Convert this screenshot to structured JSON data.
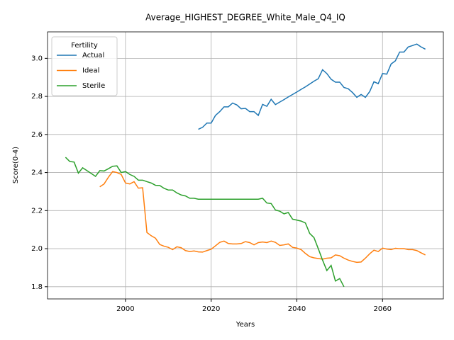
{
  "chart_data": {
    "type": "line",
    "title": "Average_HIGHEST_DEGREE_White_Male_Q4_IQ",
    "x_label": "Years",
    "y_label": "Score(0-4)",
    "x": [
      1986,
      1987,
      1988,
      1989,
      1990,
      1991,
      1992,
      1993,
      1994,
      1995,
      1996,
      1997,
      1998,
      1999,
      2000,
      2001,
      2002,
      2003,
      2004,
      2005,
      2006,
      2007,
      2008,
      2009,
      2010,
      2011,
      2012,
      2013,
      2014,
      2015,
      2016,
      2017,
      2018,
      2019,
      2020,
      2021,
      2022,
      2023,
      2024,
      2025,
      2026,
      2027,
      2028,
      2029,
      2030,
      2031,
      2032,
      2033,
      2034,
      2035,
      2036,
      2037,
      2038,
      2039,
      2040,
      2041,
      2042,
      2043,
      2044,
      2045,
      2046,
      2047,
      2048,
      2049,
      2050,
      2051,
      2052,
      2053,
      2054,
      2055,
      2056,
      2057,
      2058,
      2059,
      2060,
      2061,
      2062,
      2063,
      2064,
      2065,
      2066,
      2067,
      2068,
      2069,
      2070
    ],
    "series": [
      {
        "name": "Actual",
        "color": "#1f77b4",
        "values": [
          null,
          null,
          null,
          null,
          null,
          null,
          null,
          null,
          null,
          null,
          null,
          null,
          null,
          null,
          null,
          null,
          null,
          null,
          null,
          null,
          null,
          null,
          null,
          null,
          null,
          null,
          null,
          null,
          null,
          null,
          null,
          2.627,
          2.638,
          2.66,
          2.66,
          2.7,
          2.72,
          2.745,
          2.745,
          2.765,
          2.755,
          2.735,
          2.737,
          2.72,
          2.72,
          2.7,
          2.758,
          2.748,
          2.785,
          2.757,
          2.77,
          2.783,
          2.797,
          2.81,
          2.823,
          2.837,
          2.85,
          2.865,
          2.88,
          2.893,
          2.94,
          2.92,
          2.89,
          2.875,
          2.875,
          2.847,
          2.84,
          2.82,
          2.795,
          2.81,
          2.795,
          2.825,
          2.877,
          2.867,
          2.92,
          2.917,
          2.97,
          2.987,
          3.033,
          3.033,
          3.06,
          3.067,
          3.075,
          3.06,
          3.048
        ]
      },
      {
        "name": "Ideal",
        "color": "#ff7f0e",
        "values": [
          null,
          null,
          null,
          null,
          null,
          null,
          null,
          null,
          2.325,
          2.34,
          2.375,
          2.405,
          2.4,
          2.39,
          2.345,
          2.34,
          2.352,
          2.318,
          2.32,
          2.085,
          2.068,
          2.055,
          2.022,
          2.013,
          2.007,
          1.995,
          2.01,
          2.005,
          1.99,
          1.985,
          1.988,
          1.983,
          1.982,
          1.99,
          1.997,
          2.015,
          2.033,
          2.04,
          2.027,
          2.025,
          2.025,
          2.027,
          2.037,
          2.032,
          2.02,
          2.032,
          2.035,
          2.032,
          2.04,
          2.033,
          2.017,
          2.02,
          2.025,
          2.007,
          2.003,
          1.995,
          1.975,
          1.958,
          1.952,
          1.948,
          1.945,
          1.95,
          1.952,
          1.967,
          1.963,
          1.95,
          1.94,
          1.933,
          1.928,
          1.93,
          1.95,
          1.973,
          1.992,
          1.985,
          2.003,
          1.998,
          1.995,
          2.002,
          2.0,
          2.0,
          1.995,
          1.995,
          1.99,
          1.978,
          1.967
        ]
      },
      {
        "name": "Sterile",
        "color": "#2ca02c",
        "values": [
          2.48,
          2.458,
          2.455,
          2.397,
          2.425,
          2.41,
          2.395,
          2.38,
          2.41,
          2.408,
          2.42,
          2.433,
          2.435,
          2.4,
          2.405,
          2.39,
          2.38,
          2.36,
          2.36,
          2.352,
          2.345,
          2.333,
          2.332,
          2.317,
          2.308,
          2.308,
          2.293,
          2.282,
          2.277,
          2.265,
          2.265,
          2.26,
          2.26,
          2.26,
          2.26,
          2.26,
          2.26,
          2.26,
          2.26,
          2.26,
          2.26,
          2.26,
          2.26,
          2.26,
          2.26,
          2.26,
          2.265,
          2.24,
          2.237,
          2.203,
          2.197,
          2.183,
          2.19,
          2.155,
          2.15,
          2.145,
          2.135,
          2.08,
          2.058,
          2.0,
          1.94,
          1.885,
          1.912,
          1.83,
          1.843,
          1.8,
          null,
          null,
          null,
          null,
          null,
          null,
          null,
          null,
          null,
          null,
          null,
          null,
          null,
          null,
          null,
          null,
          null,
          null,
          null
        ]
      }
    ],
    "xlim": [
      1981.8,
      2074.2
    ],
    "ylim": [
      1.736,
      3.139
    ],
    "xticks": [
      2000,
      2020,
      2040,
      2060
    ],
    "yticks": [
      1.8,
      {
        "value": 2,
        "label": "2.0"
      },
      2.2,
      2.4,
      2.6,
      2.8,
      {
        "value": 3,
        "label": "3.0"
      }
    ],
    "grid": true,
    "legend_title": "Fertility",
    "legend_position": "upper left"
  }
}
